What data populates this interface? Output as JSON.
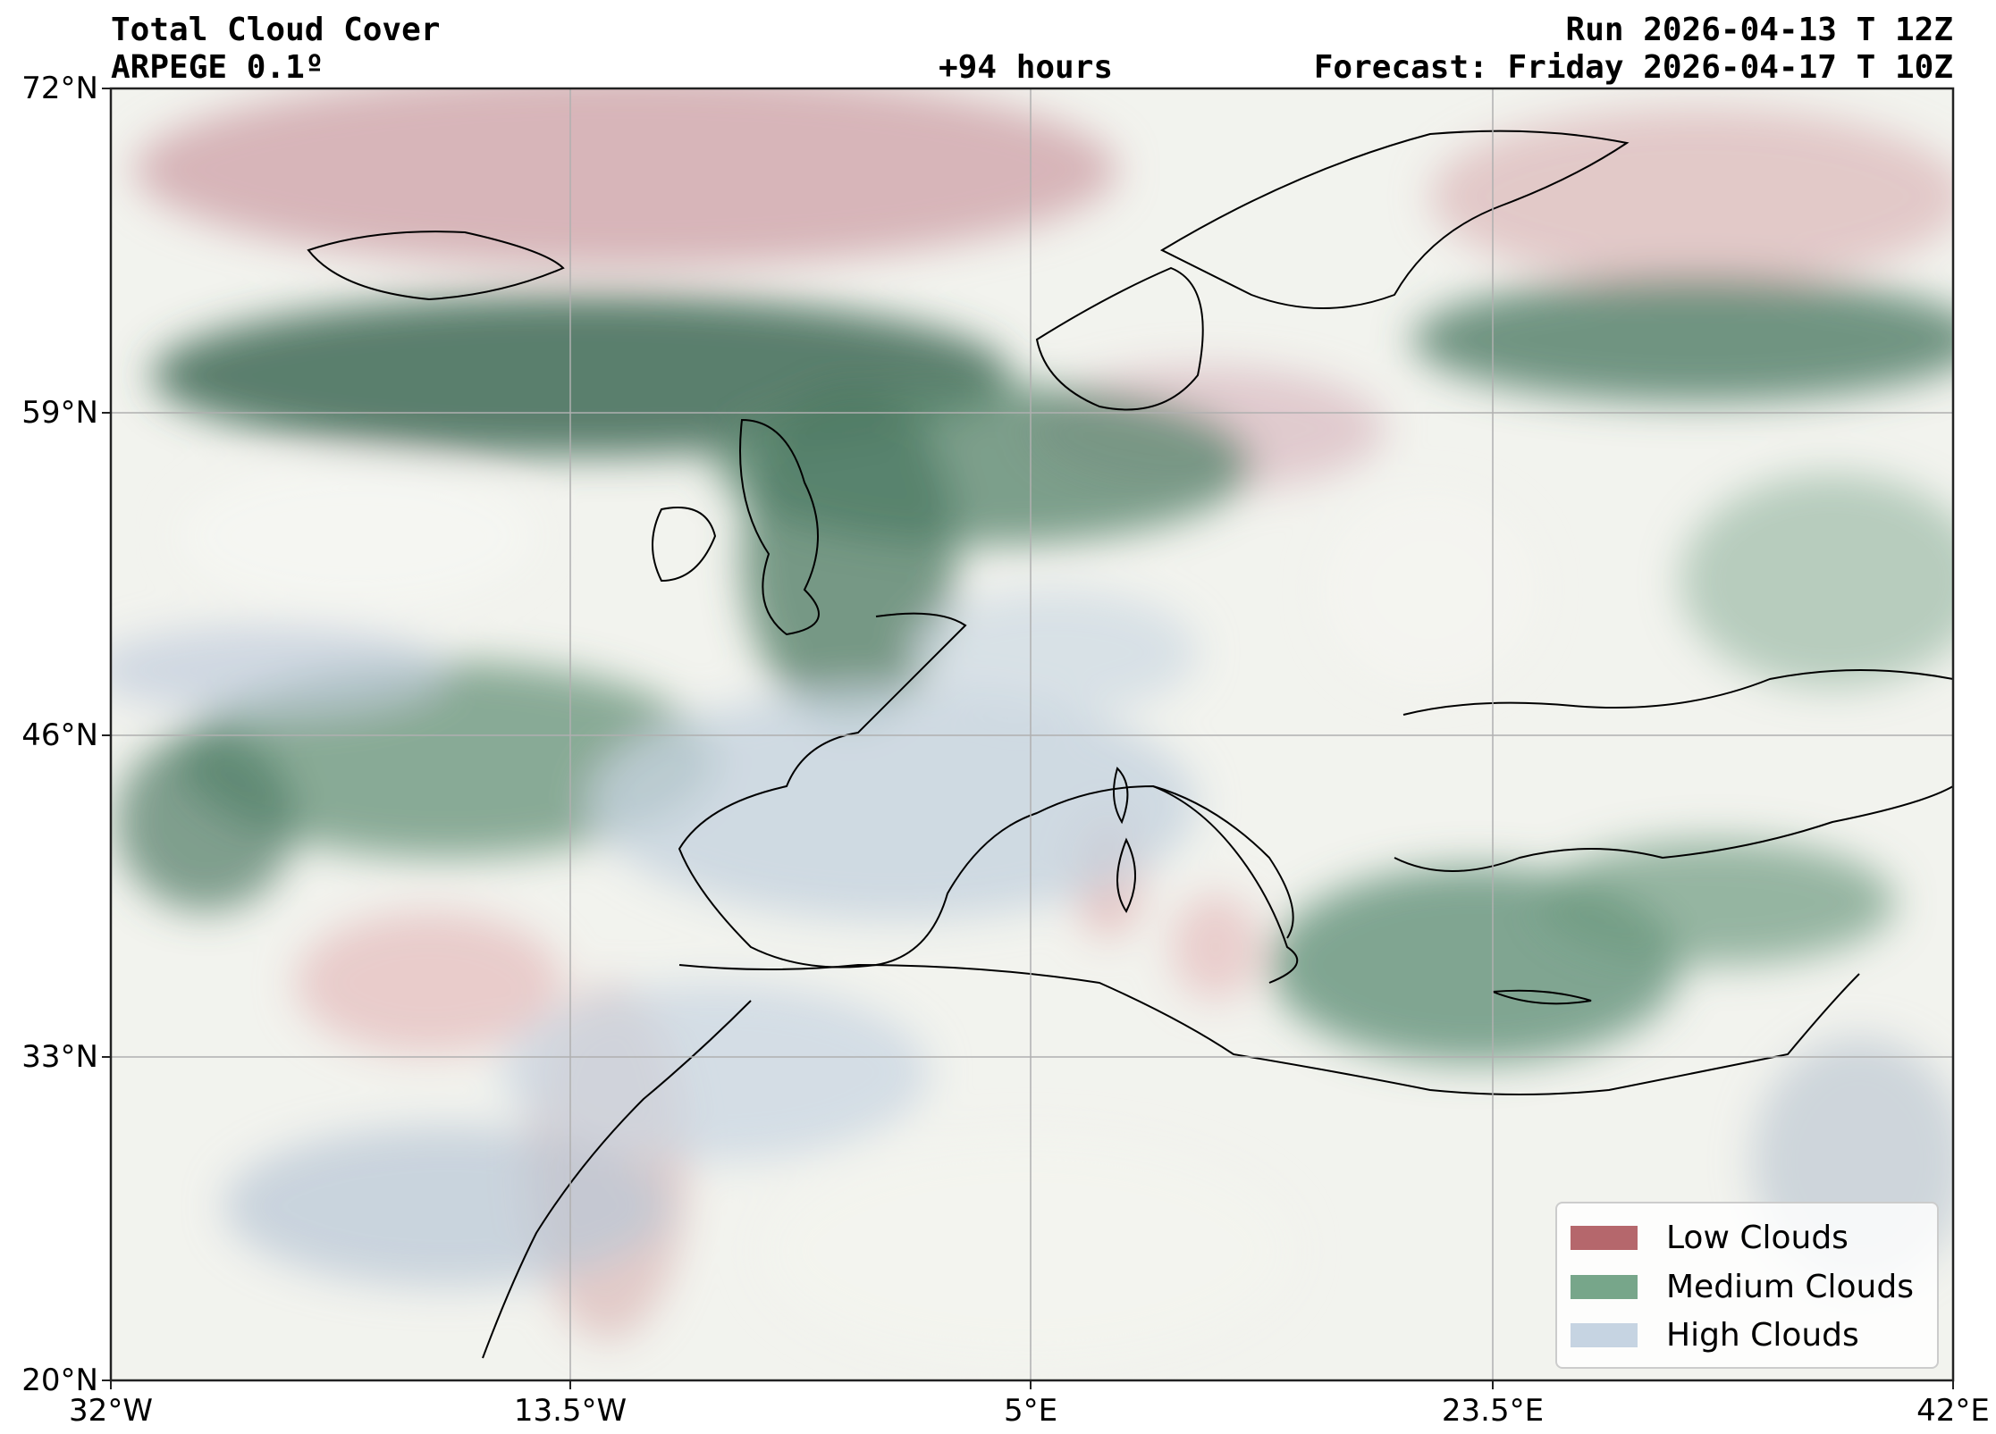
{
  "header": {
    "title": "Total Cloud Cover",
    "model": "ARPEGE 0.1º",
    "lead_time": "+94 hours",
    "run": "Run 2026-04-13 T 12Z",
    "forecast": "Forecast: Friday 2026-04-17 T 10Z"
  },
  "chart_data": {
    "type": "heatmap",
    "title": "Total Cloud Cover",
    "subtitle": "ARPEGE 0.1º",
    "xlabel": "",
    "ylabel": "",
    "xlim": [
      -32,
      42
    ],
    "ylim": [
      20,
      72
    ],
    "x_ticks": [
      -32,
      -13.5,
      5,
      23.5,
      42
    ],
    "y_ticks": [
      20,
      33,
      46,
      59,
      72
    ],
    "x_tick_labels": [
      "32°W",
      "13.5°W",
      "5°E",
      "23.5°E",
      "42°E"
    ],
    "y_tick_labels": [
      "20°N",
      "33°N",
      "46°N",
      "59°N",
      "72°N"
    ],
    "grid": true,
    "legend_placement": "bottom-right",
    "legend": [
      {
        "label": "Low Clouds",
        "color": "#b5676c"
      },
      {
        "label": "Medium Clouds",
        "color": "#77a68a"
      },
      {
        "label": "High Clouds",
        "color": "#c6d4e2"
      }
    ]
  }
}
